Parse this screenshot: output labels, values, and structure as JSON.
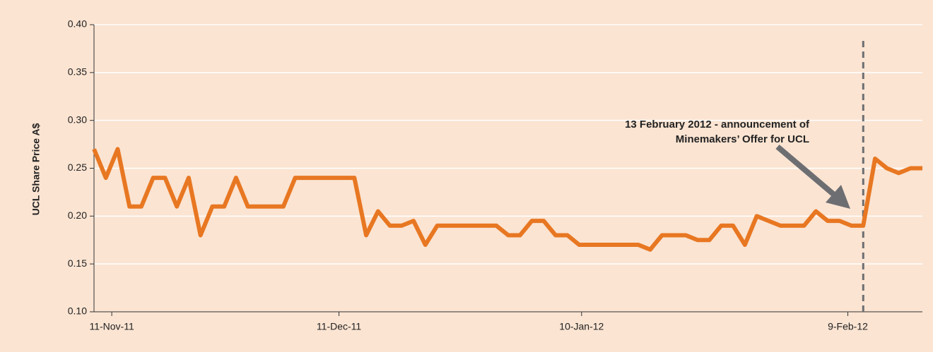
{
  "chart_data": {
    "type": "line",
    "y_label": "UCL Share Price A$",
    "categories": [
      null,
      null,
      null,
      null,
      null,
      null,
      null,
      null,
      null,
      null,
      null,
      null,
      null,
      null,
      null,
      null,
      null,
      null,
      null,
      null,
      null,
      null,
      null,
      null,
      null,
      null,
      null,
      null,
      null,
      null,
      null,
      null,
      null,
      null,
      null,
      null,
      null,
      null,
      null,
      null,
      null,
      null,
      null,
      null,
      null,
      null,
      null,
      null,
      null,
      null,
      null,
      null,
      null,
      null,
      null,
      null,
      null,
      null,
      null,
      null,
      null,
      null,
      null,
      null,
      null,
      null,
      null,
      null,
      null,
      null,
      null
    ],
    "series": [
      {
        "name": "UCL",
        "color": "#e87722",
        "values": [
          0.27,
          0.24,
          0.27,
          0.21,
          0.21,
          0.24,
          0.24,
          0.21,
          0.24,
          0.18,
          0.21,
          0.21,
          0.24,
          0.21,
          0.21,
          0.21,
          0.21,
          0.24,
          0.24,
          0.24,
          0.24,
          0.24,
          0.24,
          0.18,
          0.205,
          0.19,
          0.19,
          0.195,
          0.17,
          0.19,
          0.19,
          0.19,
          0.19,
          0.19,
          0.19,
          0.18,
          0.18,
          0.195,
          0.195,
          0.18,
          0.18,
          0.17,
          0.17,
          0.17,
          0.17,
          0.17,
          0.17,
          0.165,
          0.18,
          0.18,
          0.18,
          0.175,
          0.175,
          0.19,
          0.19,
          0.17,
          0.2,
          0.195,
          0.19,
          0.19,
          0.19,
          0.205,
          0.195,
          0.195,
          0.19,
          0.19,
          0.26,
          0.25,
          0.245,
          0.25,
          0.25
        ]
      }
    ],
    "ylim": [
      0.1,
      0.4
    ],
    "yticks": [
      {
        "value": 0.1,
        "label": "0.10"
      },
      {
        "value": 0.15,
        "label": "0.15"
      },
      {
        "value": 0.2,
        "label": "0.20"
      },
      {
        "value": 0.25,
        "label": "0.25"
      },
      {
        "value": 0.3,
        "label": "0.30"
      },
      {
        "value": 0.35,
        "label": "0.35"
      },
      {
        "value": 0.4,
        "label": "0.40"
      }
    ],
    "xticks": [
      {
        "value": 1.5,
        "label": "11-Nov-11"
      },
      {
        "value": 20.7,
        "label": "11-Dec-11"
      },
      {
        "value": 41.2,
        "label": "10-Jan-12"
      },
      {
        "value": 63.7,
        "label": "9-Feb-12"
      }
    ],
    "grid": true,
    "annotation": {
      "lines": [
        "13 February 2012 - announcement of",
        "Minemakers’ Offer for UCL"
      ],
      "x": 65
    }
  }
}
